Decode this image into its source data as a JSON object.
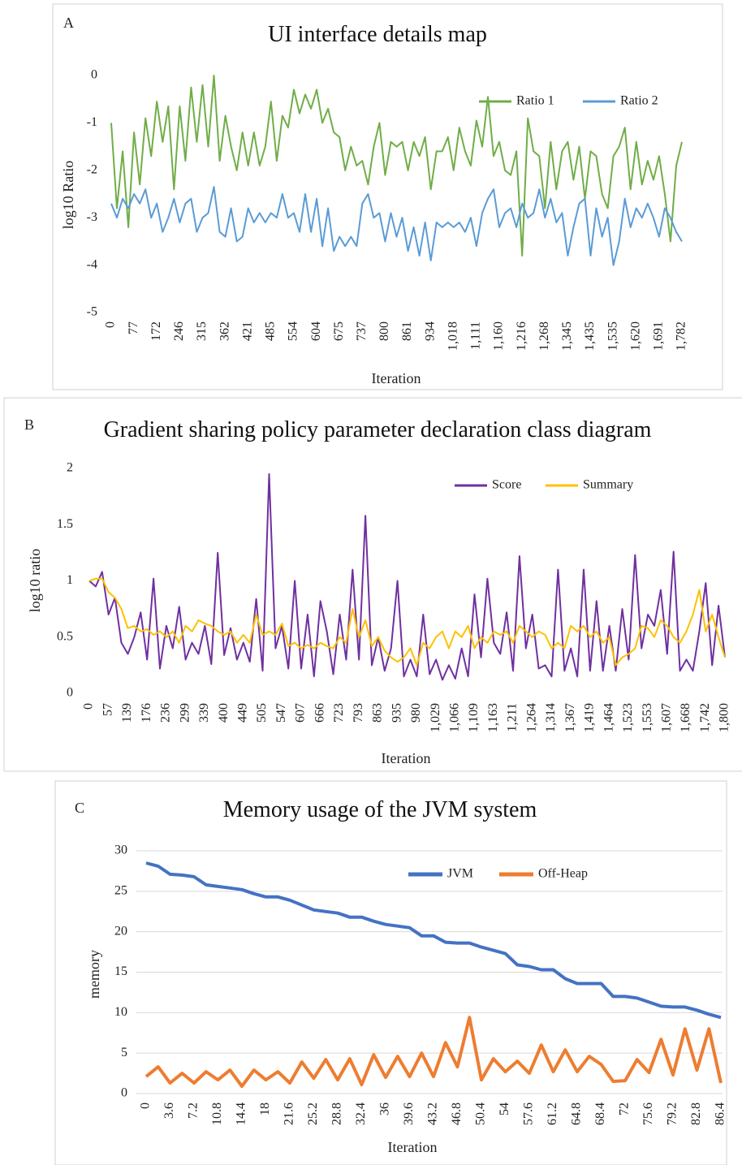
{
  "chart_data": [
    {
      "type": "line",
      "label": "A",
      "title": "UI interface details map",
      "ylabel": "log10 Ratio",
      "xlabel": "Iteration",
      "categories": [
        "0",
        null,
        null,
        null,
        "77",
        null,
        null,
        null,
        "172",
        null,
        null,
        null,
        "246",
        null,
        null,
        null,
        "315",
        null,
        null,
        null,
        "362",
        null,
        null,
        null,
        "421",
        null,
        null,
        null,
        "485",
        null,
        null,
        null,
        "554",
        null,
        null,
        null,
        "604",
        null,
        null,
        null,
        "675",
        null,
        null,
        null,
        "737",
        null,
        null,
        null,
        "800",
        null,
        null,
        null,
        "861",
        null,
        null,
        null,
        "934",
        null,
        null,
        null,
        "1,018",
        null,
        null,
        null,
        "1,111",
        null,
        null,
        null,
        "1,160",
        null,
        null,
        null,
        "1,216",
        null,
        null,
        null,
        "1,268",
        null,
        null,
        null,
        "1,345",
        null,
        null,
        null,
        "1,435",
        null,
        null,
        null,
        "1,535",
        null,
        null,
        null,
        "1,620",
        null,
        null,
        null,
        "1,691",
        null,
        null,
        null,
        "1,782"
      ],
      "series": [
        {
          "name": "Ratio 1",
          "color": "#70ad47",
          "values": [
            -1,
            -2.8,
            -1.6,
            -3.2,
            -1.2,
            -2.3,
            -0.9,
            -1.7,
            -0.55,
            -1.4,
            -0.65,
            -2.4,
            -0.65,
            -1.8,
            -0.25,
            -1.4,
            -0.2,
            -1.5,
            0,
            -1.8,
            -0.85,
            -1.5,
            -2,
            -1.2,
            -1.9,
            -1.2,
            -1.9,
            -1.5,
            -0.55,
            -1.8,
            -0.85,
            -1.1,
            -0.3,
            -0.8,
            -0.4,
            -0.7,
            -0.3,
            -1,
            -0.7,
            -1.2,
            -1.3,
            -2,
            -1.5,
            -1.9,
            -1.8,
            -2.3,
            -1.5,
            -1,
            -2.1,
            -1.4,
            -1.5,
            -1.4,
            -2,
            -1.4,
            -1.7,
            -1.3,
            -2.4,
            -1.6,
            -1.6,
            -1.3,
            -2,
            -1.1,
            -1.6,
            -1.9,
            -0.95,
            -1.5,
            -0.45,
            -1.7,
            -1.4,
            -2,
            -2.1,
            -1.6,
            -3.8,
            -0.9,
            -1.6,
            -1.7,
            -2.8,
            -1.4,
            -2.4,
            -1.6,
            -1.4,
            -2.2,
            -1.5,
            -2.6,
            -1.6,
            -1.7,
            -2.5,
            -2.8,
            -1.7,
            -1.5,
            -1.1,
            -2.4,
            -1.4,
            -2.3,
            -1.8,
            -2.2,
            -1.7,
            -2.5,
            -3.5,
            -1.9,
            -1.4
          ]
        },
        {
          "name": "Ratio 2",
          "color": "#5b9bd5",
          "values": [
            -2.7,
            -3,
            -2.6,
            -2.8,
            -2.5,
            -2.7,
            -2.4,
            -3,
            -2.7,
            -3.3,
            -3,
            -2.6,
            -3.1,
            -2.7,
            -2.6,
            -3.3,
            -3,
            -2.9,
            -2.35,
            -3.3,
            -3.4,
            -2.8,
            -3.5,
            -3.4,
            -2.8,
            -3.1,
            -2.9,
            -3.1,
            -2.9,
            -3,
            -2.5,
            -3,
            -2.9,
            -3.3,
            -2.5,
            -3.3,
            -2.6,
            -3.6,
            -2.8,
            -3.7,
            -3.4,
            -3.6,
            -3.4,
            -3.6,
            -2.7,
            -2.5,
            -3,
            -2.9,
            -3.5,
            -2.9,
            -3.4,
            -3,
            -3.7,
            -3.2,
            -3.8,
            -3.1,
            -3.9,
            -3.1,
            -3.2,
            -3.1,
            -3.2,
            -3.1,
            -3.3,
            -3,
            -3.6,
            -2.9,
            -2.6,
            -2.4,
            -3.2,
            -2.9,
            -2.8,
            -3.2,
            -2.7,
            -3,
            -2.9,
            -2.4,
            -3,
            -2.6,
            -3.1,
            -2.9,
            -3.8,
            -3.2,
            -2.7,
            -2.6,
            -3.8,
            -2.8,
            -3.4,
            -3,
            -4,
            -3.5,
            -2.6,
            -3.2,
            -2.8,
            -3,
            -2.7,
            -3,
            -3.4,
            -2.8,
            -3,
            -3.3,
            -3.5
          ]
        }
      ],
      "ylim": [
        -5,
        0
      ],
      "yticks": [
        -5,
        -4,
        -3,
        -2,
        -1,
        0
      ],
      "grid": false,
      "legend": "upper right"
    },
    {
      "type": "line",
      "label": "B",
      "title": "Gradient sharing policy parameter declaration class diagram",
      "ylabel": "log10 ratio",
      "xlabel": "Iteration",
      "categories": [
        "0",
        null,
        null,
        "57",
        null,
        null,
        "139",
        null,
        null,
        "176",
        null,
        null,
        "236",
        null,
        null,
        "299",
        null,
        null,
        "339",
        null,
        null,
        "400",
        null,
        null,
        "449",
        null,
        null,
        "505",
        null,
        null,
        "547",
        null,
        null,
        "607",
        null,
        null,
        "666",
        null,
        null,
        "723",
        null,
        null,
        "793",
        null,
        null,
        "863",
        null,
        null,
        "935",
        null,
        null,
        "980",
        null,
        null,
        "1,029",
        null,
        null,
        "1,066",
        null,
        null,
        "1,109",
        null,
        null,
        "1,163",
        null,
        null,
        "1,211",
        null,
        null,
        "1,264",
        null,
        null,
        "1,314",
        null,
        null,
        "1,367",
        null,
        null,
        "1,419",
        null,
        null,
        "1,464",
        null,
        null,
        "1,523",
        null,
        null,
        "1,553",
        null,
        null,
        "1,607",
        null,
        null,
        "1,668",
        null,
        null,
        "1,742",
        null,
        null,
        "1,800"
      ],
      "series": [
        {
          "name": "Score",
          "color": "#7030a0",
          "values": [
            1,
            0.95,
            1.08,
            0.7,
            0.85,
            0.45,
            0.35,
            0.5,
            0.72,
            0.3,
            1.02,
            0.22,
            0.6,
            0.4,
            0.77,
            0.3,
            0.45,
            0.35,
            0.6,
            0.26,
            1.25,
            0.34,
            0.58,
            0.3,
            0.45,
            0.28,
            0.84,
            0.2,
            1.95,
            0.4,
            0.6,
            0.22,
            1.0,
            0.22,
            0.7,
            0.15,
            0.82,
            0.55,
            0.17,
            0.7,
            0.3,
            1.1,
            0.3,
            1.58,
            0.25,
            0.5,
            0.2,
            0.4,
            1.0,
            0.15,
            0.3,
            0.15,
            0.7,
            0.17,
            0.3,
            0.12,
            0.25,
            0.13,
            0.4,
            0.15,
            0.88,
            0.32,
            1.02,
            0.45,
            0.35,
            0.72,
            0.2,
            1.22,
            0.4,
            0.7,
            0.22,
            0.25,
            0.15,
            1.1,
            0.2,
            0.4,
            0.15,
            1.1,
            0.2,
            0.82,
            0.2,
            0.6,
            0.2,
            0.75,
            0.3,
            1.23,
            0.4,
            0.7,
            0.6,
            0.92,
            0.35,
            1.26,
            0.2,
            0.3,
            0.2,
            0.55,
            0.98,
            0.25,
            0.78,
            0.32
          ]
        },
        {
          "name": "Summary",
          "color": "#ffc000",
          "values": [
            1,
            1.02,
            1.02,
            0.9,
            0.85,
            0.75,
            0.58,
            0.6,
            0.55,
            0.57,
            0.52,
            0.55,
            0.5,
            0.55,
            0.45,
            0.6,
            0.55,
            0.65,
            0.62,
            0.6,
            0.55,
            0.52,
            0.55,
            0.45,
            0.52,
            0.45,
            0.7,
            0.52,
            0.55,
            0.52,
            0.62,
            0.42,
            0.45,
            0.4,
            0.43,
            0.4,
            0.45,
            0.42,
            0.4,
            0.5,
            0.45,
            0.75,
            0.5,
            0.65,
            0.42,
            0.5,
            0.38,
            0.32,
            0.28,
            0.32,
            0.4,
            0.25,
            0.45,
            0.4,
            0.5,
            0.55,
            0.4,
            0.55,
            0.5,
            0.6,
            0.4,
            0.5,
            0.45,
            0.55,
            0.52,
            0.55,
            0.45,
            0.6,
            0.55,
            0.5,
            0.55,
            0.52,
            0.4,
            0.45,
            0.4,
            0.6,
            0.55,
            0.6,
            0.5,
            0.55,
            0.45,
            0.5,
            0.25,
            0.32,
            0.35,
            0.4,
            0.6,
            0.58,
            0.5,
            0.65,
            0.6,
            0.5,
            0.45,
            0.55,
            0.7,
            0.92,
            0.55,
            0.7,
            0.5,
            0.32
          ]
        }
      ],
      "ylim": [
        0,
        2
      ],
      "yticks": [
        0,
        0.5,
        1,
        1.5,
        2
      ],
      "grid": false,
      "legend": "upper right"
    },
    {
      "type": "line",
      "label": "C",
      "title": "Memory usage of the JVM system",
      "ylabel": "memory",
      "xlabel": "Iteration",
      "categories": [
        "0",
        null,
        "3.6",
        null,
        "7.2",
        null,
        "10.8",
        null,
        "14.4",
        null,
        "18",
        null,
        "21.6",
        null,
        "25.2",
        null,
        "28.8",
        null,
        "32.4",
        null,
        "36",
        null,
        "39.6",
        null,
        "43.2",
        null,
        "46.8",
        null,
        "50.4",
        null,
        "54",
        null,
        "57.6",
        null,
        "61.2",
        null,
        "64.8",
        null,
        "68.4",
        null,
        "72",
        null,
        "75.6",
        null,
        "79.2",
        null,
        "82.8",
        null,
        "86.4"
      ],
      "series": [
        {
          "name": "JVM",
          "color": "#4472c4",
          "values": [
            28.5,
            28.1,
            27.1,
            27,
            26.8,
            25.8,
            25.6,
            25.4,
            25.2,
            24.7,
            24.3,
            24.3,
            23.9,
            23.3,
            22.7,
            22.5,
            22.3,
            21.8,
            21.8,
            21.3,
            20.9,
            20.7,
            20.5,
            19.5,
            19.5,
            18.7,
            18.6,
            18.6,
            18.1,
            17.7,
            17.3,
            15.9,
            15.7,
            15.3,
            15.3,
            14.2,
            13.6,
            13.6,
            13.6,
            12,
            12,
            11.8,
            11.3,
            10.8,
            10.7,
            10.7,
            10.3,
            9.8,
            9.4
          ]
        },
        {
          "name": "Off-Heap",
          "color": "#ed7d31",
          "values": [
            2.1,
            3.3,
            1.3,
            2.5,
            1.3,
            2.7,
            1.7,
            2.9,
            0.9,
            2.9,
            1.7,
            2.7,
            1.3,
            3.9,
            1.9,
            4.2,
            1.7,
            4.3,
            1.1,
            4.8,
            2.0,
            4.6,
            2.1,
            5.0,
            2.1,
            6.3,
            3.3,
            9.4,
            1.7,
            4.3,
            2.7,
            4.0,
            2.5,
            6.0,
            2.7,
            5.4,
            2.7,
            4.6,
            3.6,
            1.5,
            1.6,
            4.2,
            2.6,
            6.7,
            2.3,
            8.0,
            2.9,
            8.0,
            1.3
          ]
        }
      ],
      "ylim": [
        0,
        30
      ],
      "yticks": [
        0,
        5,
        10,
        15,
        20,
        25,
        30
      ],
      "grid": true,
      "legend": "upper center"
    }
  ]
}
